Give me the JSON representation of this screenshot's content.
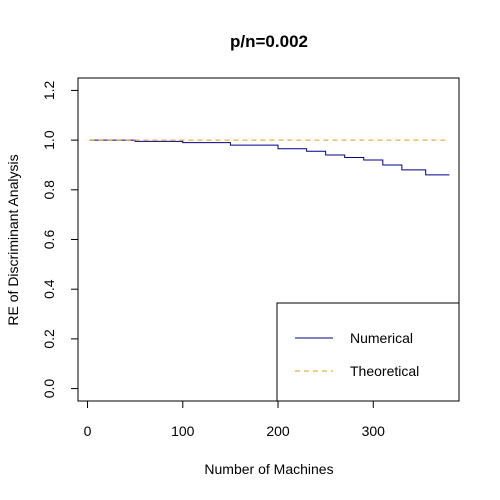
{
  "chart_data": {
    "type": "line",
    "title": "p/n=0.002",
    "xlabel": "Number of Machines",
    "ylabel": "RE of Discriminant Analysis",
    "xlim": [
      -10,
      390
    ],
    "ylim": [
      -0.05,
      1.25
    ],
    "xticks": [
      0,
      100,
      200,
      300
    ],
    "yticks": [
      0.0,
      0.2,
      0.4,
      0.6,
      0.8,
      1.0,
      1.2
    ],
    "ytick_labels": [
      "0.0",
      "0.2",
      "0.4",
      "0.6",
      "0.8",
      "1.0",
      "1.2"
    ],
    "grid": false,
    "legend_position": "bottom-right",
    "series": [
      {
        "name": "Numerical",
        "color": "#00008B",
        "style": "step-solid",
        "x": [
          2,
          50,
          100,
          150,
          200,
          230,
          250,
          270,
          290,
          310,
          330,
          355,
          380
        ],
        "y": [
          1.0,
          0.995,
          0.99,
          0.98,
          0.965,
          0.955,
          0.94,
          0.93,
          0.92,
          0.9,
          0.88,
          0.86,
          0.86
        ]
      },
      {
        "name": "Theoretical",
        "color": "#E69F00",
        "style": "dashed",
        "x": [
          2,
          380
        ],
        "y": [
          1.0,
          1.0
        ]
      }
    ]
  }
}
